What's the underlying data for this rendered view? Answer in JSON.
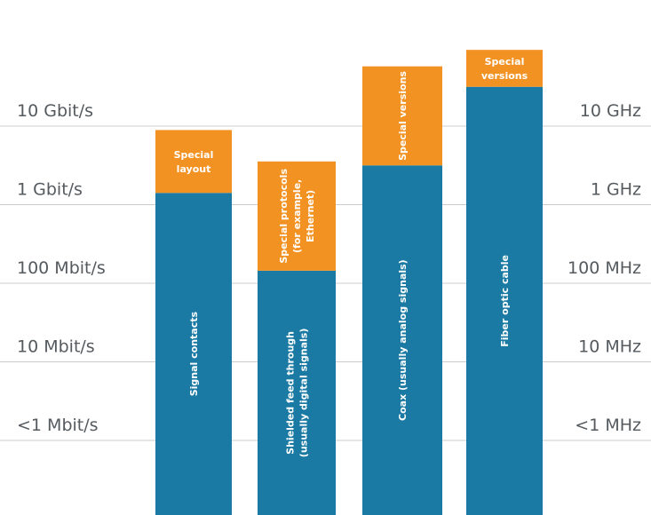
{
  "chart_data": {
    "type": "bar",
    "title": "",
    "levels": [
      {
        "left": "10 Gbit/s",
        "right": "10 GHz"
      },
      {
        "left": "1 Gbit/s",
        "right": "1 GHz"
      },
      {
        "left": "100 Mbit/s",
        "right": "100 MHz"
      },
      {
        "left": "10 Mbit/s",
        "right": "10 MHz"
      },
      {
        "left": "<1 Mbit/s",
        "right": "<1 MHz"
      }
    ],
    "categories": [
      "Signal contacts",
      "Shielded feed through",
      "Coax",
      "Fiber optic cable"
    ],
    "columns": [
      {
        "base": {
          "label_lines": [
            "Signal contacts"
          ],
          "top_level": 3.15
        },
        "extension": {
          "label_lines": [
            "Special",
            "layout"
          ],
          "top_level": 3.95,
          "orientation": "horizontal"
        }
      },
      {
        "base": {
          "label_lines": [
            "Shielded feed through",
            "(usually digital signals)"
          ],
          "top_level": 2.16
        },
        "extension": {
          "label_lines": [
            "Special protocols",
            "(for example,",
            "Ethernet)"
          ],
          "top_level": 3.55,
          "orientation": "vertical"
        }
      },
      {
        "base": {
          "label_lines": [
            "Coax (usually analog signals)"
          ],
          "top_level": 3.5
        },
        "extension": {
          "label_lines": [
            "Special versions"
          ],
          "top_level": 4.76,
          "orientation": "vertical"
        }
      },
      {
        "base": {
          "label_lines": [
            "Fiber optic cable"
          ],
          "top_level": 4.5
        },
        "extension": {
          "label_lines": [
            "Special",
            "versions"
          ],
          "top_level": 4.97,
          "orientation": "horizontal"
        }
      }
    ],
    "colors": {
      "base": "#1a7aa3",
      "extension": "#f29222",
      "grid": "#c9cccf",
      "level_text": "#555a5f"
    },
    "grid": true
  }
}
